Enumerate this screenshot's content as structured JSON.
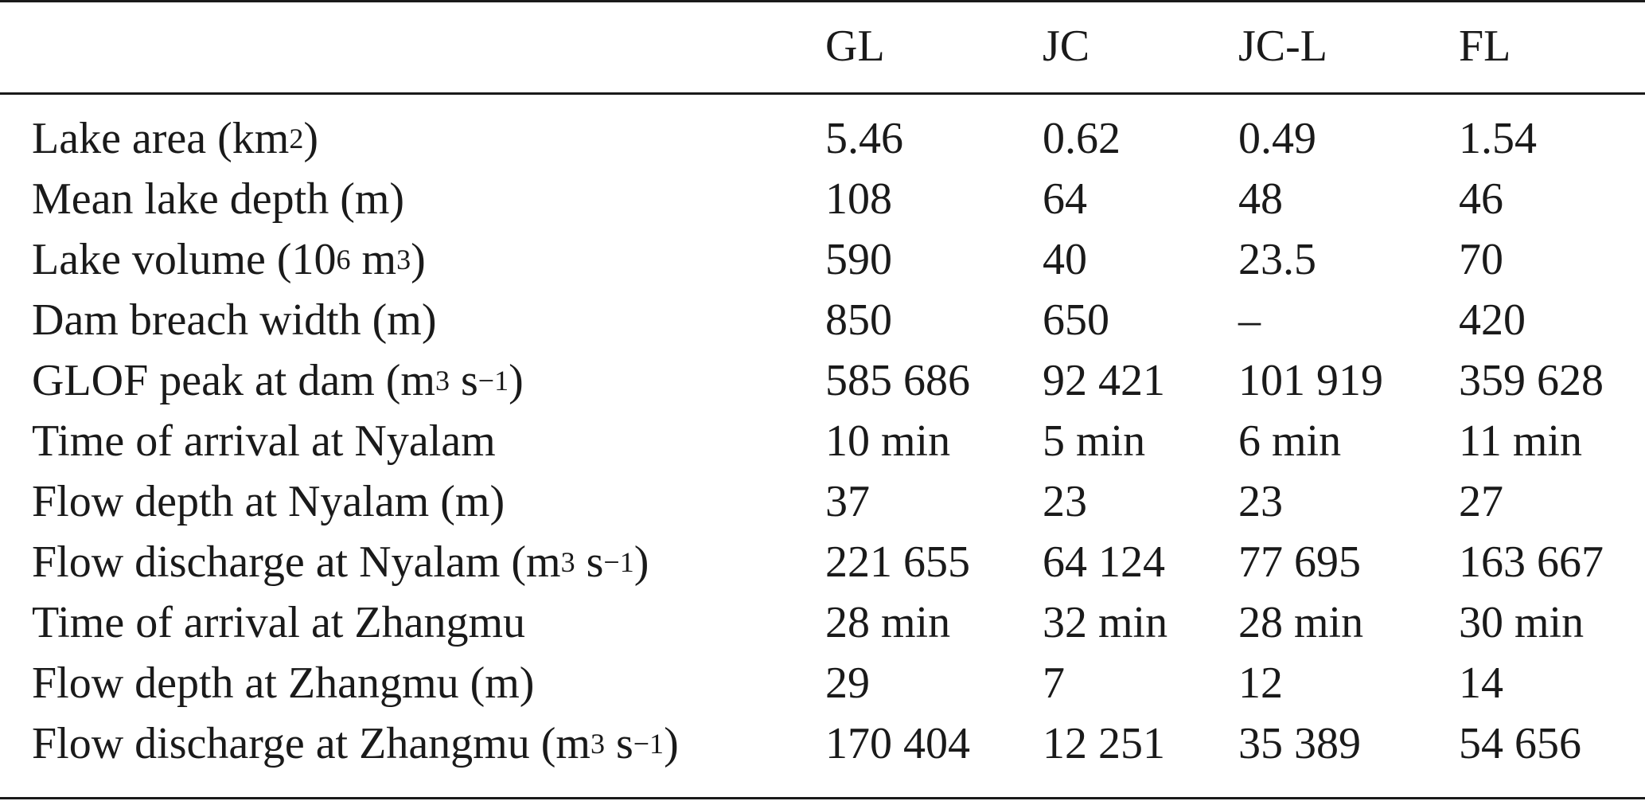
{
  "table": {
    "columns": [
      "",
      "GL",
      "JC",
      "JC-L",
      "FL"
    ],
    "rows": [
      {
        "label": "Lake area (km",
        "sup1": "2",
        "mid": "",
        "sup2": "",
        "tail": ")",
        "values": [
          "5.46",
          "0.62",
          "0.49",
          "1.54"
        ]
      },
      {
        "label": "Mean lake depth (m)",
        "sup1": "",
        "mid": "",
        "sup2": "",
        "tail": "",
        "values": [
          "108",
          "64",
          "48",
          "46"
        ]
      },
      {
        "label": "Lake volume (10",
        "sup1": "6",
        "mid": " m",
        "sup2": "3",
        "tail": ")",
        "values": [
          "590",
          "40",
          "23.5",
          "70"
        ]
      },
      {
        "label": "Dam breach width (m)",
        "sup1": "",
        "mid": "",
        "sup2": "",
        "tail": "",
        "values": [
          "850",
          "650",
          "–",
          "420"
        ]
      },
      {
        "label": "GLOF peak at dam (m",
        "sup1": "3",
        "mid": " s",
        "sup2": "−1",
        "tail": ")",
        "values": [
          "585 686",
          "92 421",
          "101 919",
          "359 628"
        ]
      },
      {
        "label": "Time of arrival at Nyalam",
        "sup1": "",
        "mid": "",
        "sup2": "",
        "tail": "",
        "values": [
          "10 min",
          "5 min",
          "6 min",
          "11 min"
        ]
      },
      {
        "label": "Flow depth at Nyalam (m)",
        "sup1": "",
        "mid": "",
        "sup2": "",
        "tail": "",
        "values": [
          "37",
          "23",
          "23",
          "27"
        ]
      },
      {
        "label": "Flow discharge at Nyalam (m",
        "sup1": "3",
        "mid": " s",
        "sup2": "−1",
        "tail": ")",
        "values": [
          "221 655",
          "64 124",
          "77 695",
          "163 667"
        ]
      },
      {
        "label": "Time of arrival at Zhangmu",
        "sup1": "",
        "mid": "",
        "sup2": "",
        "tail": "",
        "values": [
          "28 min",
          "32 min",
          "28 min",
          "30 min"
        ]
      },
      {
        "label": "Flow depth at Zhangmu (m)",
        "sup1": "",
        "mid": "",
        "sup2": "",
        "tail": "",
        "values": [
          "29",
          "7",
          "12",
          "14"
        ]
      },
      {
        "label": "Flow discharge at Zhangmu (m",
        "sup1": "3",
        "mid": " s",
        "sup2": "−1",
        "tail": ")",
        "values": [
          "170 404",
          "12 251",
          "35 389",
          "54 656"
        ]
      }
    ]
  }
}
